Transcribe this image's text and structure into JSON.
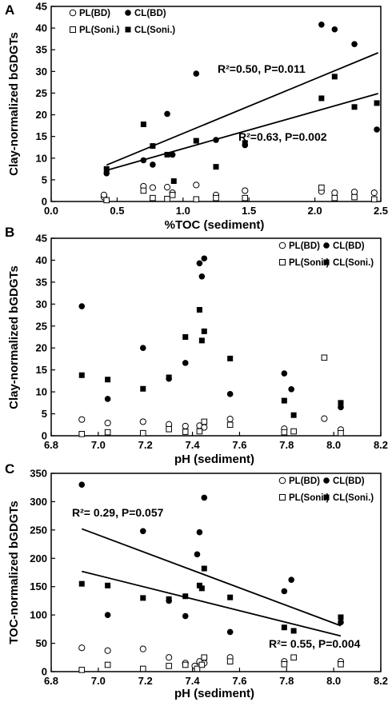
{
  "legend_labels": [
    "PL(BD)",
    "CL(BD)",
    "PL(Soni.)",
    "CL(Soni.)"
  ],
  "chart_data": [
    {
      "panel": "A",
      "type": "scatter",
      "xlabel": "%TOC (sediment)",
      "ylabel": "Clay-normalized bGDGTs",
      "xlim": [
        0,
        2.5
      ],
      "ylim": [
        0,
        45
      ],
      "xticks": [
        "0.0",
        "0.5",
        "1.0",
        "1.5",
        "2.0",
        "2.5"
      ],
      "yticks": [
        "0",
        "5",
        "10",
        "15",
        "20",
        "25",
        "30",
        "35",
        "40",
        "45"
      ],
      "legend_position": "top",
      "series": [
        {
          "name": "PL(BD)",
          "marker": "open-circle",
          "points": [
            [
              0.4,
              1.0
            ],
            [
              0.4,
              1.5
            ],
            [
              0.7,
              3.5
            ],
            [
              0.77,
              3.2
            ],
            [
              0.88,
              3.3
            ],
            [
              0.92,
              2.0
            ],
            [
              1.1,
              3.8
            ],
            [
              1.25,
              1.5
            ],
            [
              1.47,
              2.5
            ],
            [
              2.05,
              2.3
            ],
            [
              2.15,
              2.0
            ],
            [
              2.3,
              2.2
            ],
            [
              2.45,
              2.0
            ]
          ]
        },
        {
          "name": "CL(BD)",
          "marker": "filled-circle",
          "points": [
            [
              0.42,
              6.5
            ],
            [
              0.7,
              9.5
            ],
            [
              0.77,
              8.5
            ],
            [
              0.88,
              20.2
            ],
            [
              0.92,
              10.8
            ],
            [
              1.1,
              29.5
            ],
            [
              1.25,
              14.2
            ],
            [
              1.47,
              13.0
            ],
            [
              2.05,
              40.8
            ],
            [
              2.15,
              39.7
            ],
            [
              2.3,
              36.3
            ],
            [
              2.47,
              16.6
            ]
          ]
        },
        {
          "name": "PL(Soni.)",
          "marker": "open-square",
          "points": [
            [
              0.42,
              0.3
            ],
            [
              0.7,
              2.5
            ],
            [
              0.77,
              0.8
            ],
            [
              0.88,
              0.6
            ],
            [
              0.92,
              1.5
            ],
            [
              1.1,
              0.5
            ],
            [
              1.25,
              0.8
            ],
            [
              1.47,
              0.8
            ],
            [
              2.05,
              3.2
            ],
            [
              2.15,
              0.8
            ],
            [
              2.3,
              1.0
            ],
            [
              2.45,
              0.5
            ]
          ]
        },
        {
          "name": "CL(Soni.)",
          "marker": "filled-square",
          "points": [
            [
              0.42,
              7.5
            ],
            [
              0.7,
              17.8
            ],
            [
              0.77,
              12.8
            ],
            [
              0.88,
              10.8
            ],
            [
              0.93,
              4.7
            ],
            [
              1.1,
              14.0
            ],
            [
              1.25,
              8.0
            ],
            [
              1.47,
              13.5
            ],
            [
              2.05,
              23.8
            ],
            [
              2.15,
              28.8
            ],
            [
              2.3,
              21.8
            ],
            [
              2.47,
              22.7
            ]
          ]
        }
      ],
      "trendlines": [
        {
          "fit_to": "CL(BD)",
          "from": [
            0.42,
            8.4
          ],
          "to": [
            2.48,
            34.3
          ]
        },
        {
          "fit_to": "CL(Soni.)",
          "from": [
            0.42,
            7.2
          ],
          "to": [
            2.48,
            24.9
          ]
        }
      ],
      "annotations": [
        {
          "text": "R²=0.50, P=0.011",
          "near": "upper line"
        },
        {
          "text": "R²=0.63, P=0.002",
          "near": "lower line"
        }
      ]
    },
    {
      "panel": "B",
      "type": "scatter",
      "xlabel": "pH (sediment)",
      "ylabel": "Clay-normalized bGDGTs",
      "xlim": [
        6.8,
        8.2
      ],
      "ylim": [
        0,
        45
      ],
      "xticks": [
        "6.8",
        "7.0",
        "7.2",
        "7.4",
        "7.6",
        "7.8",
        "8.0",
        "8.2"
      ],
      "yticks": [
        "0",
        "5",
        "10",
        "15",
        "20",
        "25",
        "30",
        "35",
        "40",
        "45"
      ],
      "legend_position": "top-right",
      "series": [
        {
          "name": "PL(BD)",
          "marker": "open-circle",
          "points": [
            [
              6.93,
              3.7
            ],
            [
              7.04,
              2.9
            ],
            [
              7.19,
              3.2
            ],
            [
              7.3,
              2.6
            ],
            [
              7.37,
              2.2
            ],
            [
              7.43,
              2.3
            ],
            [
              7.45,
              1.9
            ],
            [
              7.56,
              3.8
            ],
            [
              7.79,
              1.6
            ],
            [
              7.96,
              3.9
            ],
            [
              8.03,
              1.4
            ]
          ]
        },
        {
          "name": "CL(BD)",
          "marker": "filled-circle",
          "points": [
            [
              6.93,
              29.5
            ],
            [
              7.04,
              8.4
            ],
            [
              7.19,
              20.0
            ],
            [
              7.3,
              13.0
            ],
            [
              7.37,
              16.6
            ],
            [
              7.43,
              39.3
            ],
            [
              7.44,
              36.3
            ],
            [
              7.45,
              40.4
            ],
            [
              7.56,
              9.5
            ],
            [
              7.79,
              14.2
            ],
            [
              7.82,
              10.6
            ],
            [
              8.03,
              6.5
            ]
          ]
        },
        {
          "name": "PL(Soni.)",
          "marker": "open-square",
          "points": [
            [
              6.93,
              0.4
            ],
            [
              7.04,
              0.8
            ],
            [
              7.19,
              0.6
            ],
            [
              7.3,
              1.5
            ],
            [
              7.37,
              0.9
            ],
            [
              7.43,
              1.0
            ],
            [
              7.45,
              3.2
            ],
            [
              7.56,
              2.5
            ],
            [
              7.79,
              0.8
            ],
            [
              7.83,
              1.0
            ],
            [
              7.96,
              17.8
            ],
            [
              8.03,
              0.6
            ]
          ]
        },
        {
          "name": "CL(Soni.)",
          "marker": "filled-square",
          "points": [
            [
              6.93,
              13.8
            ],
            [
              7.04,
              12.8
            ],
            [
              7.19,
              10.7
            ],
            [
              7.3,
              13.3
            ],
            [
              7.37,
              22.5
            ],
            [
              7.43,
              28.7
            ],
            [
              7.44,
              21.7
            ],
            [
              7.45,
              23.8
            ],
            [
              7.56,
              17.6
            ],
            [
              7.79,
              8.0
            ],
            [
              7.83,
              4.7
            ],
            [
              8.03,
              7.5
            ]
          ]
        }
      ]
    },
    {
      "panel": "C",
      "type": "scatter",
      "xlabel": "pH (sediment)",
      "ylabel": "TOC-normalized bGDGTs",
      "xlim": [
        6.8,
        8.2
      ],
      "ylim": [
        0,
        350
      ],
      "xticks": [
        "6.8",
        "7.0",
        "7.2",
        "7.4",
        "7.6",
        "7.8",
        "8.0",
        "8.2"
      ],
      "yticks": [
        "0",
        "50",
        "100",
        "150",
        "200",
        "250",
        "300",
        "350"
      ],
      "legend_position": "top-right",
      "series": [
        {
          "name": "PL(BD)",
          "marker": "open-circle",
          "points": [
            [
              6.93,
              42
            ],
            [
              7.04,
              37
            ],
            [
              7.19,
              40
            ],
            [
              7.3,
              25
            ],
            [
              7.37,
              15
            ],
            [
              7.41,
              10
            ],
            [
              7.43,
              18
            ],
            [
              7.45,
              15
            ],
            [
              7.56,
              25
            ],
            [
              7.79,
              18
            ],
            [
              8.03,
              18
            ]
          ]
        },
        {
          "name": "CL(BD)",
          "marker": "filled-circle",
          "points": [
            [
              6.93,
              330
            ],
            [
              7.04,
              100
            ],
            [
              7.19,
              248
            ],
            [
              7.3,
              125
            ],
            [
              7.37,
              98
            ],
            [
              7.42,
              207
            ],
            [
              7.43,
              246
            ],
            [
              7.45,
              307
            ],
            [
              7.56,
              70
            ],
            [
              7.79,
              142
            ],
            [
              7.82,
              162
            ],
            [
              8.03,
              87
            ]
          ]
        },
        {
          "name": "PL(Soni.)",
          "marker": "open-square",
          "points": [
            [
              6.93,
              3
            ],
            [
              7.04,
              12
            ],
            [
              7.19,
              5
            ],
            [
              7.3,
              10
            ],
            [
              7.37,
              12
            ],
            [
              7.42,
              5
            ],
            [
              7.44,
              12
            ],
            [
              7.45,
              25
            ],
            [
              7.56,
              18
            ],
            [
              7.79,
              13
            ],
            [
              7.83,
              25
            ],
            [
              8.03,
              13
            ]
          ]
        },
        {
          "name": "CL(Soni.)",
          "marker": "filled-square",
          "points": [
            [
              6.93,
              155
            ],
            [
              7.04,
              152
            ],
            [
              7.19,
              130
            ],
            [
              7.3,
              128
            ],
            [
              7.37,
              133
            ],
            [
              7.43,
              152
            ],
            [
              7.44,
              147
            ],
            [
              7.45,
              182
            ],
            [
              7.56,
              131
            ],
            [
              7.79,
              78
            ],
            [
              7.83,
              72
            ],
            [
              8.03,
              96
            ]
          ]
        }
      ],
      "trendlines": [
        {
          "fit_to": "CL(BD)",
          "from": [
            6.93,
            252
          ],
          "to": [
            8.03,
            81
          ]
        },
        {
          "fit_to": "CL(Soni.)",
          "from": [
            6.93,
            177
          ],
          "to": [
            8.03,
            63
          ]
        }
      ],
      "annotations": [
        {
          "text": "R²= 0.29, P=0.057",
          "near": "upper left"
        },
        {
          "text": "R²= 0.55, P=0.004",
          "near": "lower right"
        }
      ]
    }
  ]
}
